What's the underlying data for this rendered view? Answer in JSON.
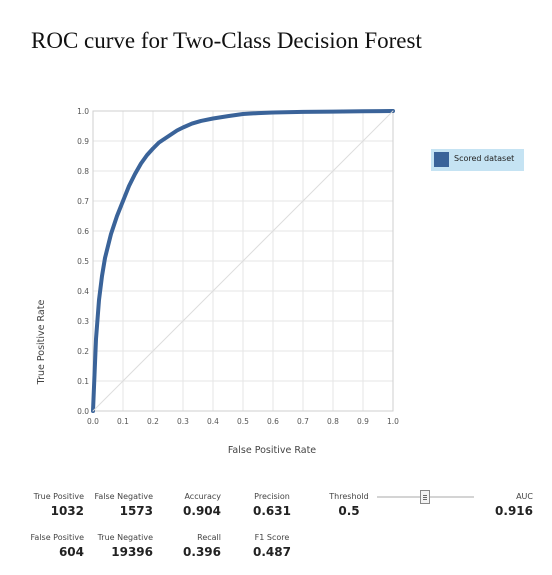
{
  "title": "ROC curve for Two-Class Decision Forest",
  "chart_data": {
    "type": "line",
    "xlabel": "False Positive Rate",
    "ylabel": "True Positive Rate",
    "xlim": [
      0,
      1
    ],
    "ylim": [
      0,
      1
    ],
    "x_ticks": [
      "0.0",
      "0.1",
      "0.2",
      "0.3",
      "0.4",
      "0.5",
      "0.6",
      "0.7",
      "0.8",
      "0.9",
      "1.0"
    ],
    "y_ticks": [
      "0.0",
      "0.1",
      "0.2",
      "0.3",
      "0.4",
      "0.5",
      "0.6",
      "0.7",
      "0.8",
      "0.9",
      "1.0"
    ],
    "grid": true,
    "legend_position": "right",
    "series": [
      {
        "name": "Scored dataset",
        "color": "#3a6399",
        "x": [
          0,
          0.005,
          0.01,
          0.02,
          0.03,
          0.04,
          0.05,
          0.06,
          0.08,
          0.1,
          0.12,
          0.14,
          0.16,
          0.18,
          0.2,
          0.22,
          0.25,
          0.28,
          0.3,
          0.33,
          0.36,
          0.4,
          0.45,
          0.5,
          0.55,
          0.6,
          0.7,
          0.8,
          0.9,
          1.0
        ],
        "y": [
          0,
          0.12,
          0.24,
          0.37,
          0.45,
          0.51,
          0.55,
          0.59,
          0.65,
          0.7,
          0.75,
          0.79,
          0.825,
          0.853,
          0.875,
          0.895,
          0.915,
          0.935,
          0.945,
          0.958,
          0.967,
          0.975,
          0.983,
          0.99,
          0.993,
          0.995,
          0.997,
          0.998,
          0.999,
          1.0
        ]
      },
      {
        "name": "",
        "color": "#dddddd",
        "x": [
          0,
          1
        ],
        "y": [
          0,
          1
        ]
      }
    ]
  },
  "legend": {
    "label": "Scored dataset",
    "color": "#3a6399"
  },
  "metrics": {
    "true_positive": {
      "label": "True Positive",
      "value": "1032"
    },
    "false_negative": {
      "label": "False Negative",
      "value": "1573"
    },
    "accuracy": {
      "label": "Accuracy",
      "value": "0.904"
    },
    "precision": {
      "label": "Precision",
      "value": "0.631"
    },
    "threshold": {
      "label": "Threshold",
      "value": "0.5"
    },
    "auc": {
      "label": "AUC",
      "value": "0.916"
    },
    "false_positive": {
      "label": "False Positive",
      "value": "604"
    },
    "true_negative": {
      "label": "True Negative",
      "value": "19396"
    },
    "recall": {
      "label": "Recall",
      "value": "0.396"
    },
    "f1_score": {
      "label": "F1 Score",
      "value": "0.487"
    }
  },
  "threshold_slider": {
    "value": 0.5,
    "min": 0,
    "max": 1
  }
}
